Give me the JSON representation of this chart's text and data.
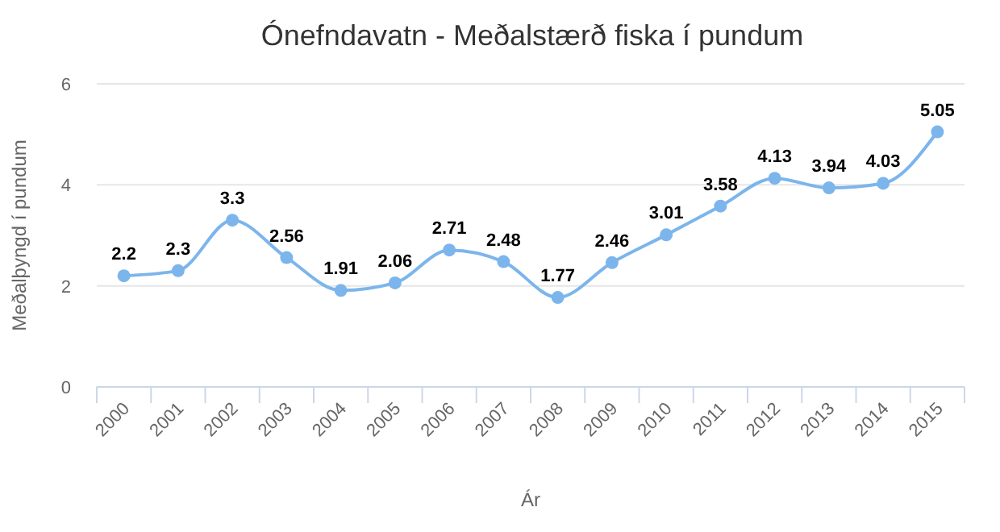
{
  "chart_data": {
    "type": "line",
    "title": "Ónefndavatn - Meðalstærð fiska í pundum",
    "xlabel": "Ár",
    "ylabel": "Meðalþyngd í pundum",
    "categories": [
      "2000",
      "2001",
      "2002",
      "2003",
      "2004",
      "2005",
      "2006",
      "2007",
      "2008",
      "2009",
      "2010",
      "2011",
      "2012",
      "2013",
      "2014",
      "2015"
    ],
    "series": [
      {
        "color": "#7cb5ec",
        "values": [
          2.2,
          2.3,
          3.3,
          2.56,
          1.91,
          2.06,
          2.71,
          2.48,
          1.77,
          2.46,
          3.01,
          3.58,
          4.13,
          3.94,
          4.03,
          5.05
        ]
      }
    ],
    "ylim": [
      0,
      6
    ],
    "yticks": [
      0,
      2,
      4,
      6
    ],
    "grid": "y",
    "marker": "circle",
    "line_style": "solid",
    "data_labels": true
  }
}
